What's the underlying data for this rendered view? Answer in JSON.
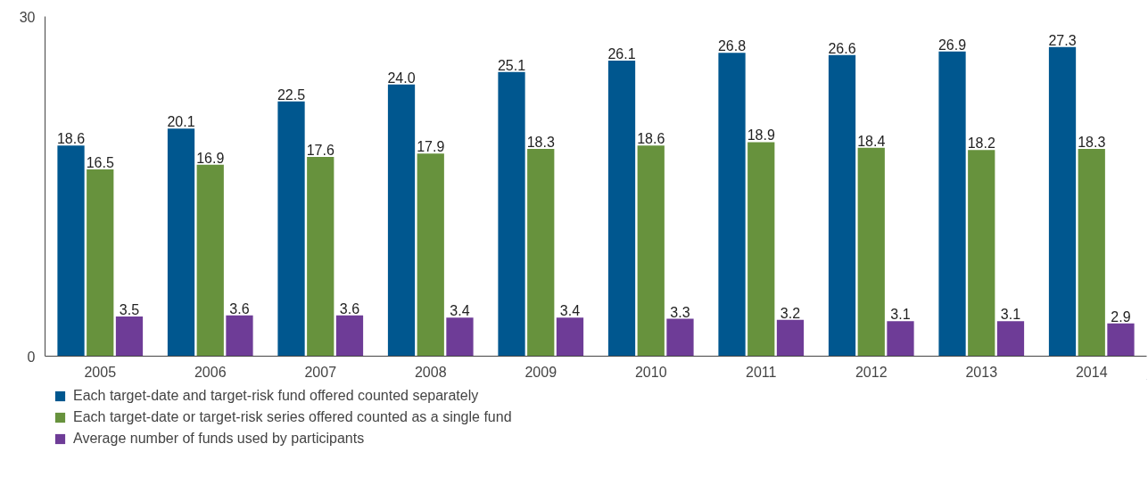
{
  "chart_data": {
    "type": "bar",
    "categories": [
      "2005",
      "2006",
      "2007",
      "2008",
      "2009",
      "2010",
      "2011",
      "2012",
      "2013",
      "2014"
    ],
    "series": [
      {
        "name": "Each target-date and target-risk fund offered counted separately",
        "color": "#00578f",
        "values": [
          18.6,
          20.1,
          22.5,
          24.0,
          25.1,
          26.1,
          26.8,
          26.6,
          26.9,
          27.3
        ],
        "value_labels": [
          "18.6",
          "20.1",
          "22.5",
          "24.0",
          "25.1",
          "26.1",
          "26.8",
          "26.6",
          "26.9",
          "27.3"
        ]
      },
      {
        "name": "Each target-date or target-risk series offered counted as a single fund",
        "color": "#67923d",
        "values": [
          16.5,
          16.9,
          17.6,
          17.9,
          18.3,
          18.6,
          18.9,
          18.4,
          18.2,
          18.3
        ],
        "value_labels": [
          "16.5",
          "16.9",
          "17.6",
          "17.9",
          "18.3",
          "18.6",
          "18.9",
          "18.4",
          "18.2",
          "18.3"
        ]
      },
      {
        "name": "Average number of funds used by participants",
        "color": "#6e3c97",
        "values": [
          3.5,
          3.6,
          3.6,
          3.4,
          3.4,
          3.3,
          3.2,
          3.1,
          3.1,
          2.9
        ],
        "value_labels": [
          "3.5",
          "3.6",
          "3.6",
          "3.4",
          "3.4",
          "3.3",
          "3.2",
          "3.1",
          "3.1",
          "2.9"
        ]
      }
    ],
    "ylim": [
      0,
      30
    ],
    "yticks": [
      0,
      30
    ],
    "grid": false,
    "legend": "bottom"
  }
}
